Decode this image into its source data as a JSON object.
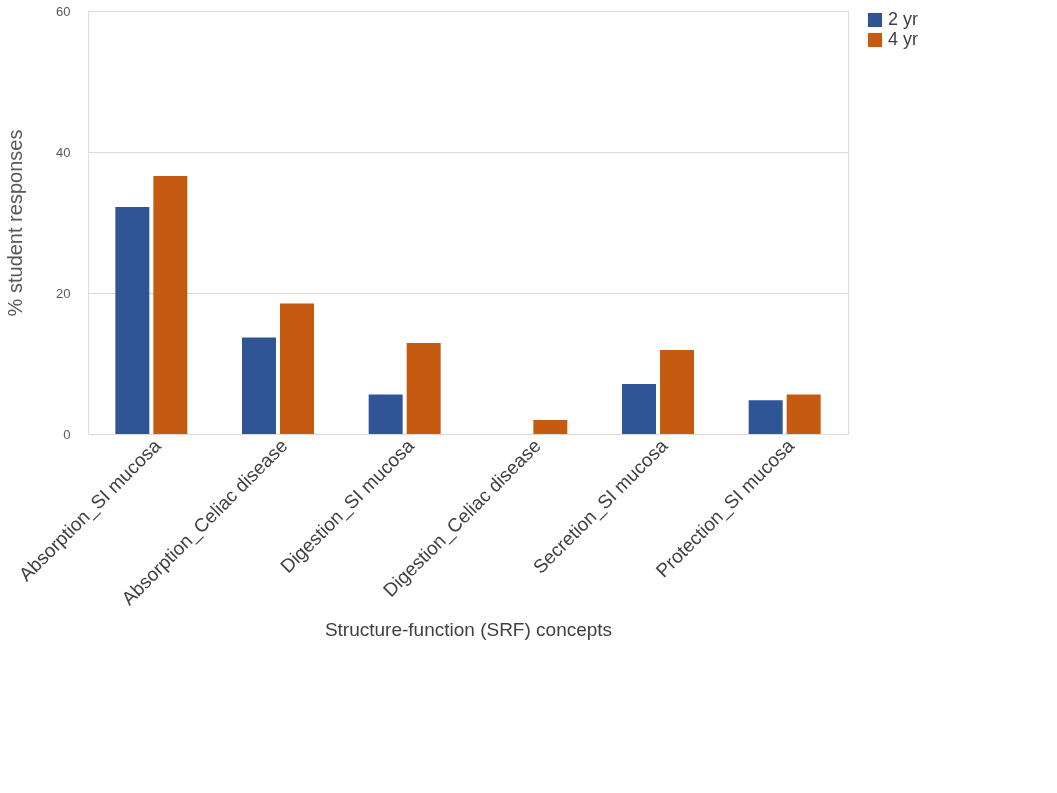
{
  "chart_data": {
    "type": "bar",
    "xlabel": "Structure-function (SRF) concepts",
    "ylabel": "% student responses",
    "categories": [
      "Absorption_SI mucosa",
      "Absorption_Celiac disease",
      "Digestion_SI mucosa",
      "Digestion_Celiac disease",
      "Secretion_SI mucosa",
      "Protection_SI mucosa"
    ],
    "series": [
      {
        "name": "2 yr",
        "color": "#2f5597",
        "values": [
          32.2,
          13.7,
          5.6,
          0,
          7.1,
          4.8
        ]
      },
      {
        "name": "4 yr",
        "color": "#c55a11",
        "values": [
          36.6,
          18.5,
          12.9,
          2.0,
          11.9,
          5.6
        ]
      }
    ],
    "ylim": [
      0,
      60
    ],
    "yticks": [
      0,
      20,
      40,
      60
    ],
    "grid": "y",
    "legend": "right"
  }
}
